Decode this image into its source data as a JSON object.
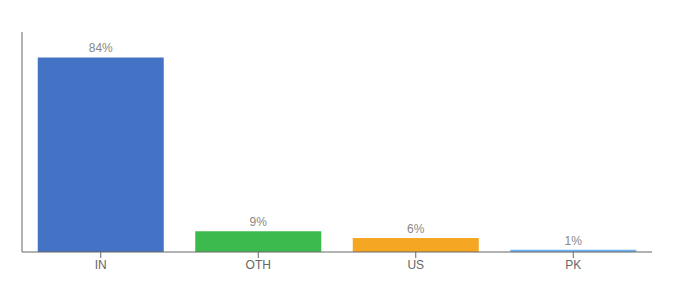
{
  "chart_data": {
    "type": "bar",
    "categories": [
      "IN",
      "OTH",
      "US",
      "PK"
    ],
    "values": [
      84,
      9,
      6,
      1
    ],
    "value_labels": [
      "84%",
      "9%",
      "6%",
      "1%"
    ],
    "colors": [
      "#4472c4",
      "#3dba4e",
      "#f5a623",
      "#6ab4f5"
    ],
    "ylim": [
      0,
      95
    ],
    "data_labels": true,
    "tick_labels": "x"
  }
}
